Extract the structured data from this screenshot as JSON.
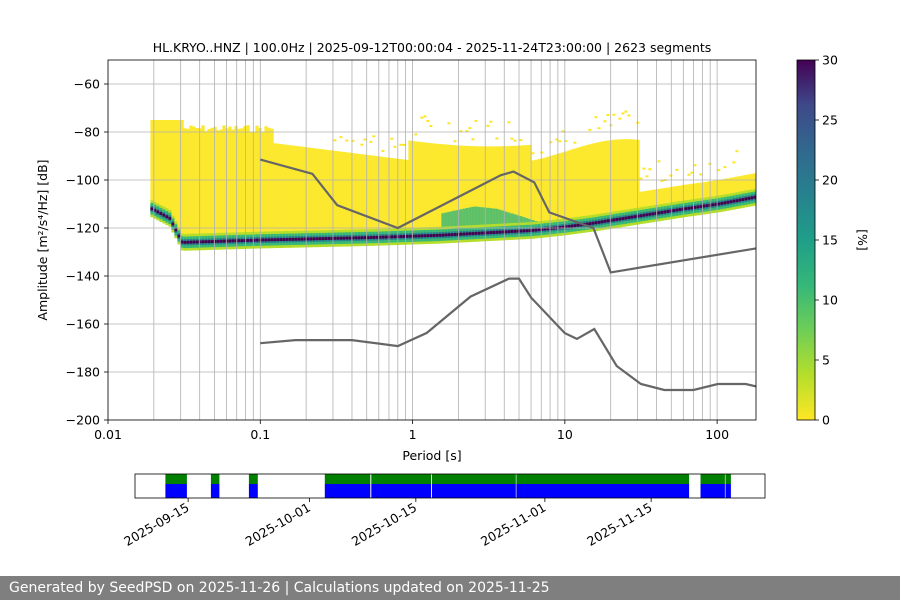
{
  "chart_data": {
    "type": "heatmap",
    "title": "HL.KRYO..HNZ | 100.0Hz | 2025-09-12T00:00:04 - 2025-11-24T23:00:00 | 2623 segments",
    "xlabel": "Period [s]",
    "ylabel": "Amplitude [m²/s⁴/Hz] [dB]",
    "x_scale": "log",
    "xlim": [
      0.01,
      180
    ],
    "ylim": [
      -200,
      -50
    ],
    "x_ticks": [
      {
        "value": 0.01,
        "label": "0.01"
      },
      {
        "value": 0.1,
        "label": "0.1"
      },
      {
        "value": 1,
        "label": "1"
      },
      {
        "value": 10,
        "label": "10"
      },
      {
        "value": 100,
        "label": "100"
      }
    ],
    "y_ticks": [
      {
        "value": -60,
        "label": "−60"
      },
      {
        "value": -80,
        "label": "−80"
      },
      {
        "value": -100,
        "label": "−100"
      },
      {
        "value": -120,
        "label": "−120"
      },
      {
        "value": -140,
        "label": "−140"
      },
      {
        "value": -160,
        "label": "−160"
      },
      {
        "value": -180,
        "label": "−180"
      },
      {
        "value": -200,
        "label": "−200"
      }
    ],
    "grid": true,
    "colorbar": {
      "label": "[%]",
      "range": [
        0,
        30
      ],
      "colormap": "viridis_r",
      "ticks": [
        {
          "value": 0,
          "label": "0"
        },
        {
          "value": 5,
          "label": "5"
        },
        {
          "value": 10,
          "label": "10"
        },
        {
          "value": 15,
          "label": "15"
        },
        {
          "value": 20,
          "label": "20"
        },
        {
          "value": 25,
          "label": "25"
        },
        {
          "value": 30,
          "label": "30"
        }
      ]
    },
    "noise_models": [
      {
        "name": "NHNM",
        "color": "#666666",
        "points": [
          [
            0.1,
            -91.5
          ],
          [
            0.22,
            -97.4
          ],
          [
            0.32,
            -110.5
          ],
          [
            0.8,
            -120
          ],
          [
            3.8,
            -98
          ],
          [
            4.6,
            -96.5
          ],
          [
            6.3,
            -101
          ],
          [
            7.9,
            -113.5
          ],
          [
            15.4,
            -120
          ],
          [
            20,
            -138.5
          ],
          [
            180,
            -128.5
          ]
        ]
      },
      {
        "name": "NLNM",
        "color": "#666666",
        "points": [
          [
            0.1,
            -168
          ],
          [
            0.17,
            -166.7
          ],
          [
            0.4,
            -166.7
          ],
          [
            0.8,
            -169.2
          ],
          [
            1.24,
            -163.7
          ],
          [
            2.4,
            -148.6
          ],
          [
            4.3,
            -141.1
          ],
          [
            5,
            -141.1
          ],
          [
            6,
            -149
          ],
          [
            10,
            -163.8
          ],
          [
            12,
            -166.2
          ],
          [
            15.6,
            -162.1
          ],
          [
            21.9,
            -177.5
          ],
          [
            31.6,
            -185
          ],
          [
            45,
            -187.5
          ],
          [
            70,
            -187.5
          ],
          [
            101,
            -185
          ],
          [
            154,
            -185
          ],
          [
            180,
            -186
          ]
        ]
      }
    ],
    "density_ridges": [
      {
        "name": "main-mode",
        "points": [
          [
            0.019,
            -112
          ],
          [
            0.025,
            -116
          ],
          [
            0.03,
            -126
          ],
          [
            0.1,
            -125
          ],
          [
            0.5,
            -124
          ],
          [
            1.5,
            -123
          ],
          [
            3,
            -122
          ],
          [
            6,
            -121
          ],
          [
            10,
            -119.5
          ],
          [
            15,
            -118
          ],
          [
            30,
            -115
          ],
          [
            60,
            -112
          ],
          [
            100,
            -110
          ],
          [
            180,
            -107
          ]
        ]
      },
      {
        "name": "microseism-hump",
        "points": [
          [
            1.5,
            -116
          ],
          [
            2.5,
            -113
          ],
          [
            3.5,
            -114
          ],
          [
            5,
            -117
          ],
          [
            7,
            -120
          ]
        ]
      }
    ],
    "availability": {
      "date_ticks": [
        {
          "date": "2025-09-15",
          "label": "2025-09-15"
        },
        {
          "date": "2025-10-01",
          "label": "2025-10-01"
        },
        {
          "date": "2025-10-15",
          "label": "2025-10-15"
        },
        {
          "date": "2025-11-01",
          "label": "2025-11-01"
        },
        {
          "date": "2025-11-15",
          "label": "2025-11-15"
        }
      ],
      "data_color": "#0000ff",
      "used_color": "#008000",
      "range_start": "2025-09-08T00:00:00",
      "range_end": "2025-11-30T00:00:00",
      "segments": [
        [
          "2025-09-12T00:00:00",
          "2025-09-14T20:00:00"
        ],
        [
          "2025-09-18T00:00:00",
          "2025-09-19T03:00:00"
        ],
        [
          "2025-09-23T00:00:00",
          "2025-09-24T04:00:00"
        ],
        [
          "2025-10-03T00:00:00",
          "2025-10-09T00:00:00"
        ],
        [
          "2025-10-09T03:00:00",
          "2025-10-17T00:00:00"
        ],
        [
          "2025-10-17T03:00:00",
          "2025-10-28T04:00:00"
        ],
        [
          "2025-10-28T06:00:00",
          "2025-11-20T00:00:00"
        ],
        [
          "2025-11-21T12:00:00",
          "2025-11-24T17:00:00"
        ],
        [
          "2025-11-24T19:00:00",
          "2025-11-25T12:00:00"
        ]
      ]
    }
  },
  "footer": {
    "text": "Generated by SeedPSD on 2025-11-26 | Calculations updated on 2025-11-25"
  }
}
